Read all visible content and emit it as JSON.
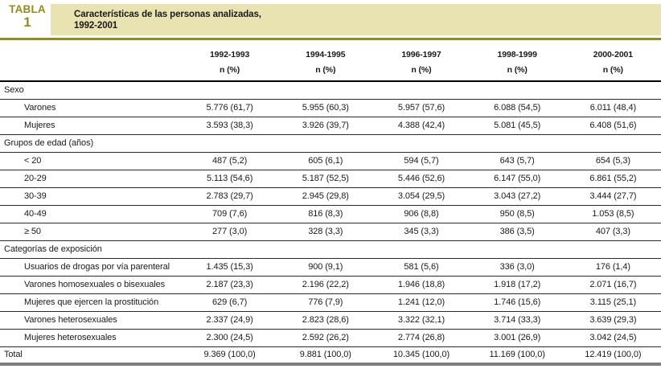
{
  "colors": {
    "olive_accent": "#938b1d",
    "banner_background": "#e8e3b0",
    "rule_thin": "#2a2a2a",
    "rule_thick_bottom": "#7e7e7e"
  },
  "header": {
    "label_word": "TABLA",
    "label_number": "1",
    "title_line1": "Características de las personas analizadas,",
    "title_line2": "1992-2001"
  },
  "table": {
    "columns": [
      "1992-1993",
      "1994-1995",
      "1996-1997",
      "1998-1999",
      "2000-2001"
    ],
    "subheader": "n (%)",
    "sections": [
      {
        "label": "Sexo",
        "rows": [
          {
            "label": "Varones",
            "values": [
              "5.776 (61,7)",
              "5.955 (60,3)",
              "5.957 (57,6)",
              "6.088 (54,5)",
              "6.011 (48,4)"
            ]
          },
          {
            "label": "Mujeres",
            "values": [
              "3.593 (38,3)",
              "3.926 (39,7)",
              "4.388 (42,4)",
              "5.081 (45,5)",
              "6.408 (51,6)"
            ]
          }
        ]
      },
      {
        "label": "Grupos de edad (años)",
        "rows": [
          {
            "label": "< 20",
            "values": [
              "487 (5,2)",
              "605 (6,1)",
              "594 (5,7)",
              "643 (5,7)",
              "654 (5,3)"
            ]
          },
          {
            "label": "20-29",
            "values": [
              "5.113 (54,6)",
              "5.187 (52,5)",
              "5.446 (52,6)",
              "6.147 (55,0)",
              "6.861 (55,2)"
            ]
          },
          {
            "label": "30-39",
            "values": [
              "2.783 (29,7)",
              "2.945 (29,8)",
              "3.054 (29,5)",
              "3.043 (27,2)",
              "3.444 (27,7)"
            ]
          },
          {
            "label": "40-49",
            "values": [
              "709 (7,6)",
              "816 (8,3)",
              "906 (8,8)",
              "950 (8,5)",
              "1.053 (8,5)"
            ]
          },
          {
            "label": "≥ 50",
            "values": [
              "277 (3,0)",
              "328 (3,3)",
              "345 (3,3)",
              "386 (3,5)",
              "407 (3,3)"
            ]
          }
        ]
      },
      {
        "label": "Categorías de exposición",
        "rows": [
          {
            "label": "Usuarios de drogas por vía parenteral",
            "values": [
              "1.435 (15,3)",
              "900 (9,1)",
              "581 (5,6)",
              "336 (3,0)",
              "176 (1,4)"
            ]
          },
          {
            "label": "Varones homosexuales o bisexuales",
            "values": [
              "2.187 (23,3)",
              "2.196 (22,2)",
              "1.946 (18,8)",
              "1.918 (17,2)",
              "2.071 (16,7)"
            ]
          },
          {
            "label": "Mujeres que ejercen la prostitución",
            "values": [
              "629 (6,7)",
              "776 (7,9)",
              "1.241 (12,0)",
              "1.746 (15,6)",
              "3.115 (25,1)"
            ]
          },
          {
            "label": "Varones heterosexuales",
            "values": [
              "2.337 (24,9)",
              "2.823 (28,6)",
              "3.322 (32,1)",
              "3.714 (33,3)",
              "3.639 (29,3)"
            ]
          },
          {
            "label": "Mujeres heterosexuales",
            "values": [
              "2.300 (24,5)",
              "2.592 (26,2)",
              "2.774 (26,8)",
              "3.001 (26,9)",
              "3.042 (24,5)"
            ]
          }
        ]
      }
    ],
    "total": {
      "label": "Total",
      "values": [
        "9.369 (100,0)",
        "9.881 (100,0)",
        "10.345 (100,0)",
        "11.169 (100,0)",
        "12.419 (100,0)"
      ]
    }
  }
}
